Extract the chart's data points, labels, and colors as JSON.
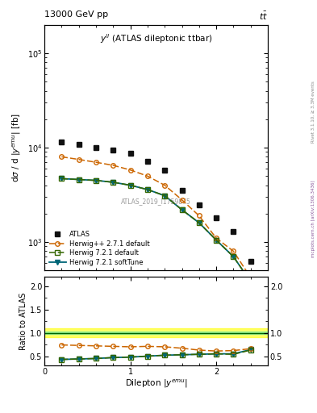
{
  "title_top": "13000 GeV pp",
  "title_right": "t$\\bar{t}$",
  "inner_title": "$y^{ll}$ (ATLAS dileptonic ttbar)",
  "watermark": "ATLAS_2019_I1759875",
  "right_label_top": "Rivet 3.1.10, $\\geq$ 3.3M events",
  "right_label_bot": "mcplots.cern.ch [arXiv:1306.3436]",
  "ylabel_main": "d$\\sigma$ / d |$y^{emu}$| [fb]",
  "ylabel_ratio": "Ratio to ATLAS",
  "xlabel": "Dilepton $|y^{emu}|$",
  "x_data": [
    0.2,
    0.4,
    0.6,
    0.8,
    1.0,
    1.2,
    1.4,
    1.6,
    1.8,
    2.0,
    2.2,
    2.4
  ],
  "y_atlas": [
    11500,
    10800,
    10000,
    9500,
    8700,
    7200,
    5800,
    3500,
    2500,
    1800,
    1300,
    620
  ],
  "y_hppdef": [
    8000,
    7500,
    7000,
    6500,
    5800,
    5000,
    4000,
    2800,
    1900,
    1100,
    800,
    420
  ],
  "y_h721def": [
    4700,
    4600,
    4500,
    4300,
    4000,
    3600,
    3100,
    2200,
    1600,
    1050,
    700,
    380
  ],
  "y_h721sft": [
    4700,
    4600,
    4500,
    4300,
    4000,
    3600,
    3100,
    2200,
    1600,
    1050,
    700,
    380
  ],
  "ratio_hpp": [
    0.74,
    0.73,
    0.72,
    0.71,
    0.7,
    0.71,
    0.7,
    0.67,
    0.63,
    0.61,
    0.62,
    0.66
  ],
  "ratio_def": [
    0.43,
    0.44,
    0.45,
    0.47,
    0.48,
    0.5,
    0.52,
    0.53,
    0.54,
    0.55,
    0.54,
    0.63
  ],
  "ratio_sft": [
    0.43,
    0.44,
    0.45,
    0.47,
    0.48,
    0.5,
    0.52,
    0.53,
    0.54,
    0.55,
    0.55,
    0.64
  ],
  "color_atlas": "#111111",
  "color_hpp": "#cc6600",
  "color_h721def": "#336600",
  "color_h721sft": "#006677",
  "ylim_main": [
    500,
    200000
  ],
  "ylim_ratio": [
    0.3,
    2.2
  ],
  "xlim": [
    0.0,
    2.6
  ],
  "yticks_ratio": [
    0.5,
    1.0,
    1.5,
    2.0
  ],
  "yticks_ratio_right": [
    0.5,
    1.0,
    2.0
  ]
}
